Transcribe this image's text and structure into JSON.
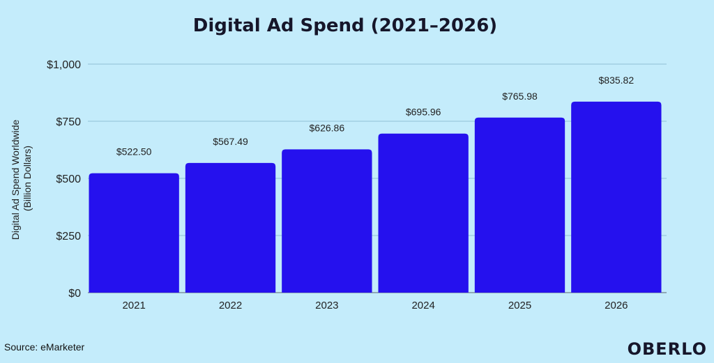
{
  "chart_data": {
    "type": "bar",
    "title": "Digital Ad Spend (2021–2026)",
    "ylabel": "Digital Ad Spend Worldwide (Billion Dollars)",
    "ylabel_lines": [
      "Digital Ad Spend Worldwide",
      "(Billion Dollars)"
    ],
    "xlabel": "",
    "categories": [
      "2021",
      "2022",
      "2023",
      "2024",
      "2025",
      "2026"
    ],
    "values": [
      522.5,
      567.49,
      626.86,
      695.96,
      765.98,
      835.82
    ],
    "value_labels": [
      "$522.50",
      "$567.49",
      "$626.86",
      "$695.96",
      "$765.98",
      "$835.82"
    ],
    "ylim": [
      0,
      1000
    ],
    "yticks": [
      0,
      250,
      500,
      750,
      1000
    ],
    "ytick_labels": [
      "$0",
      "$250",
      "$500",
      "$750",
      "$1,000"
    ],
    "grid": true,
    "legend": "none",
    "bar_color": "#2511ee",
    "background_color": "#c4ecfb"
  },
  "source": "Source: eMarketer",
  "brand": "OBERLO"
}
